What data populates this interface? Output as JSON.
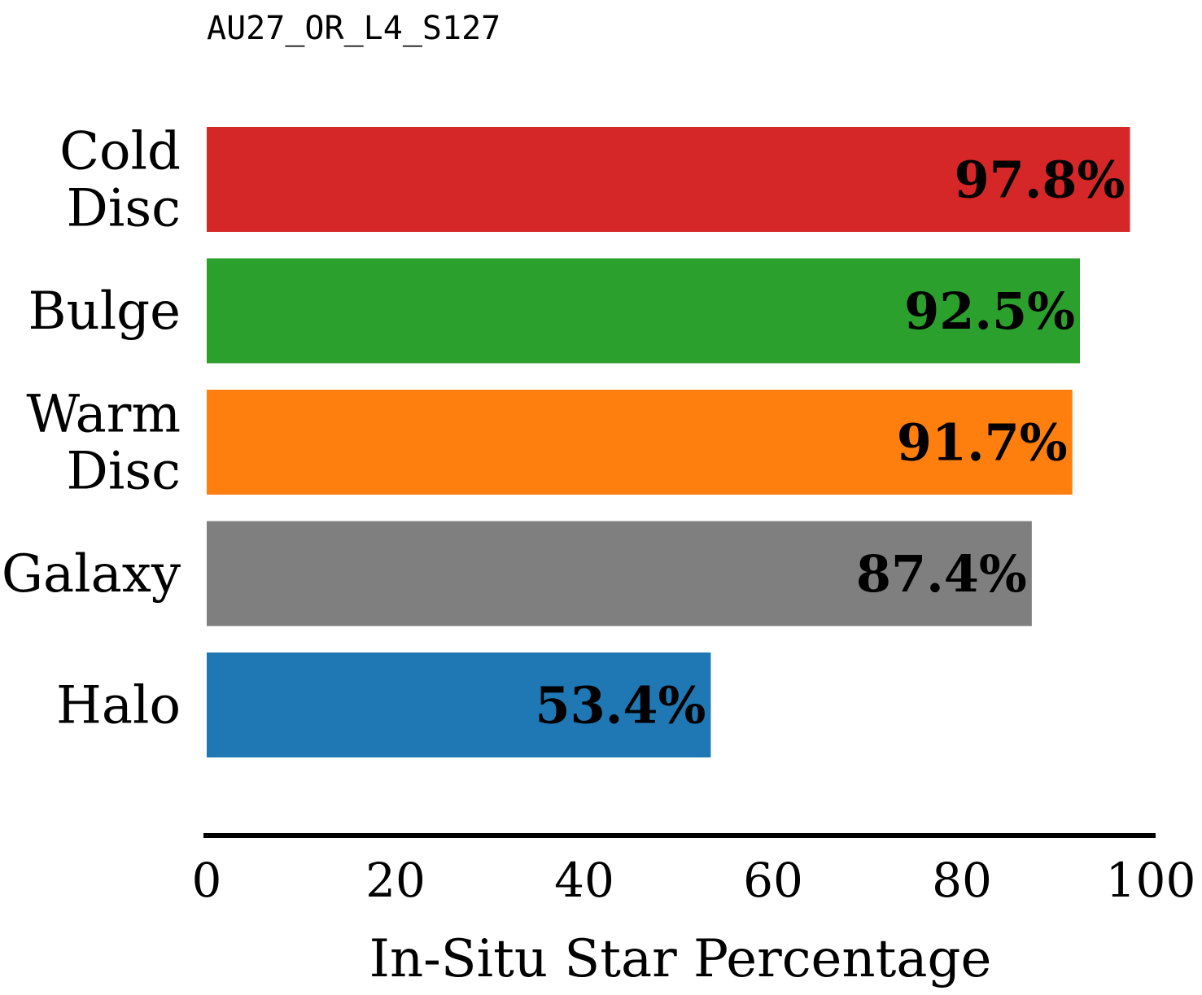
{
  "chart_data": {
    "type": "bar",
    "orientation": "horizontal",
    "title": "AU27_OR_L4_S127",
    "xlabel": "In-Situ Star Percentage",
    "ylabel": "",
    "xlim": [
      0,
      100
    ],
    "xticks": [
      0,
      20,
      40,
      60,
      80,
      100
    ],
    "grid": false,
    "categories": [
      [
        "Cold",
        "Disc"
      ],
      [
        "Bulge"
      ],
      [
        "Warm",
        "Disc"
      ],
      [
        "Galaxy"
      ],
      [
        "Halo"
      ]
    ],
    "values": [
      97.8,
      92.5,
      91.7,
      87.4,
      53.4
    ],
    "value_labels": [
      "97.8%",
      "92.5%",
      "91.7%",
      "87.4%",
      "53.4%"
    ],
    "colors": [
      "#d62728",
      "#2ca02c",
      "#ff7f0e",
      "#7f7f7f",
      "#1f77b4"
    ]
  }
}
